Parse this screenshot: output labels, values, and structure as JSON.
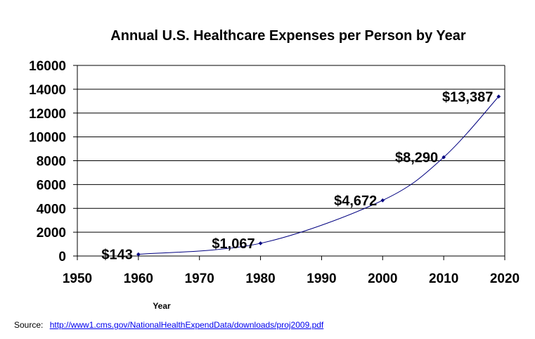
{
  "chart_data": {
    "type": "scatter",
    "title": "Annual U.S. Healthcare Expenses per Person by Year",
    "xlabel": "Year",
    "ylabel": "",
    "xlim": [
      1950,
      2020
    ],
    "ylim": [
      0,
      16000
    ],
    "xticks": [
      1950,
      1960,
      1970,
      1980,
      1990,
      2000,
      2010,
      2020
    ],
    "yticks": [
      0,
      2000,
      4000,
      6000,
      8000,
      10000,
      12000,
      14000,
      16000
    ],
    "grid": "horizontal",
    "smoothed_line": true,
    "series": [
      {
        "x": [
          1960,
          1980,
          2000,
          2010,
          2019
        ],
        "y": [
          143,
          1067,
          4672,
          8290,
          13387
        ],
        "labels": [
          "$143",
          "$1,067",
          "$4,672",
          "$8,290",
          "$13,387"
        ],
        "color": "#000080"
      }
    ]
  },
  "source": {
    "label": "Source:",
    "link": "http://www1.cms.gov/NationalHealthExpendData/downloads/proj2009.pdf"
  },
  "colors": {
    "series": "#000080",
    "grid": "#000000",
    "background": "#ffffff"
  }
}
